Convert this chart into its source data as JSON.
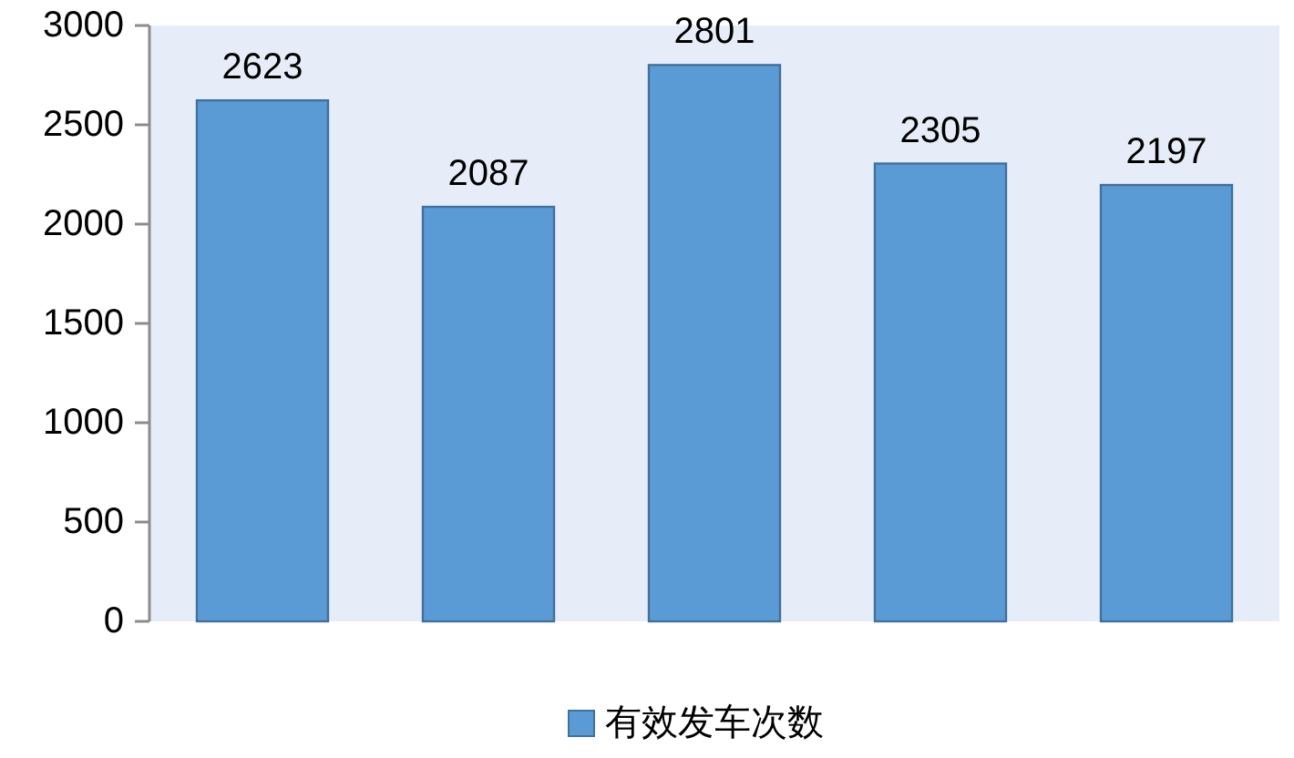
{
  "chart_data": {
    "type": "bar",
    "categories": [
      null,
      null,
      null,
      null,
      null
    ],
    "series": [
      {
        "name": "有效发车次数",
        "color": "#5b9bd5",
        "values": [
          2623,
          2087,
          2801,
          2305,
          2197
        ]
      }
    ],
    "ylim": [
      0,
      3000
    ],
    "yticks": [
      0,
      500,
      1000,
      1500,
      2000,
      2500,
      3000
    ],
    "data_labels": true,
    "legend": "bottom"
  }
}
